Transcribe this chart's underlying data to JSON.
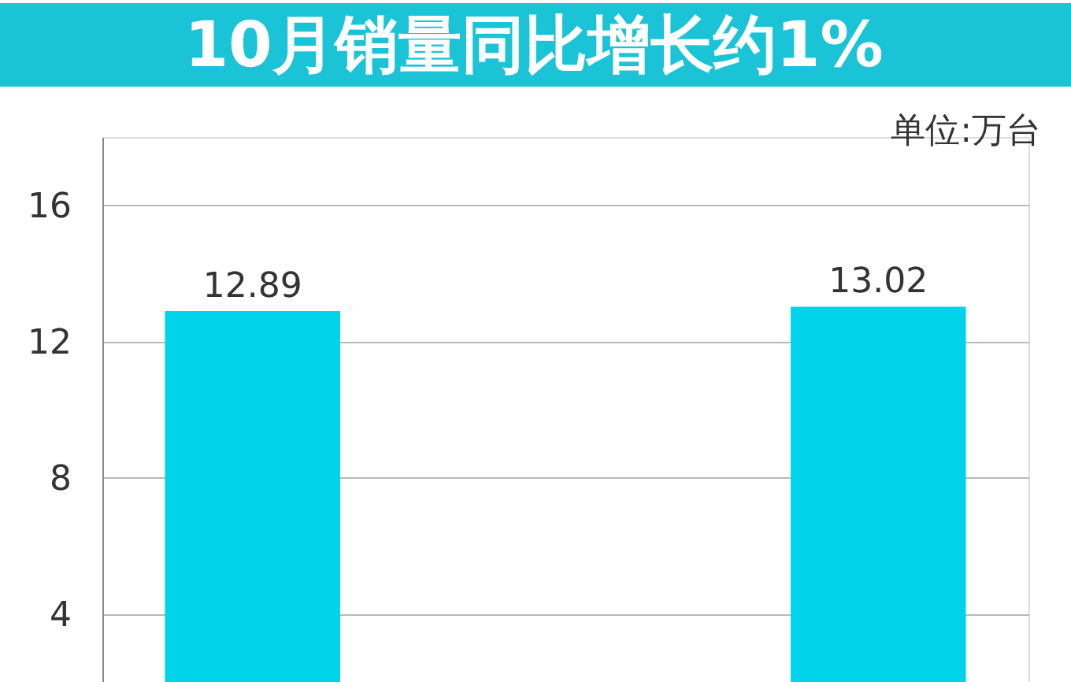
{
  "chart_data": {
    "type": "bar",
    "title": "10月销量同比增长约1%",
    "ylabel": "单位:万台",
    "categories": [
      null,
      null
    ],
    "values": [
      12.89,
      13.02
    ],
    "color": "#00d4ea",
    "ylim": [
      2,
      18
    ],
    "yticks": [
      4,
      8,
      12,
      16
    ],
    "grid": "y",
    "data_labels": true,
    "tick_labels": "y"
  }
}
